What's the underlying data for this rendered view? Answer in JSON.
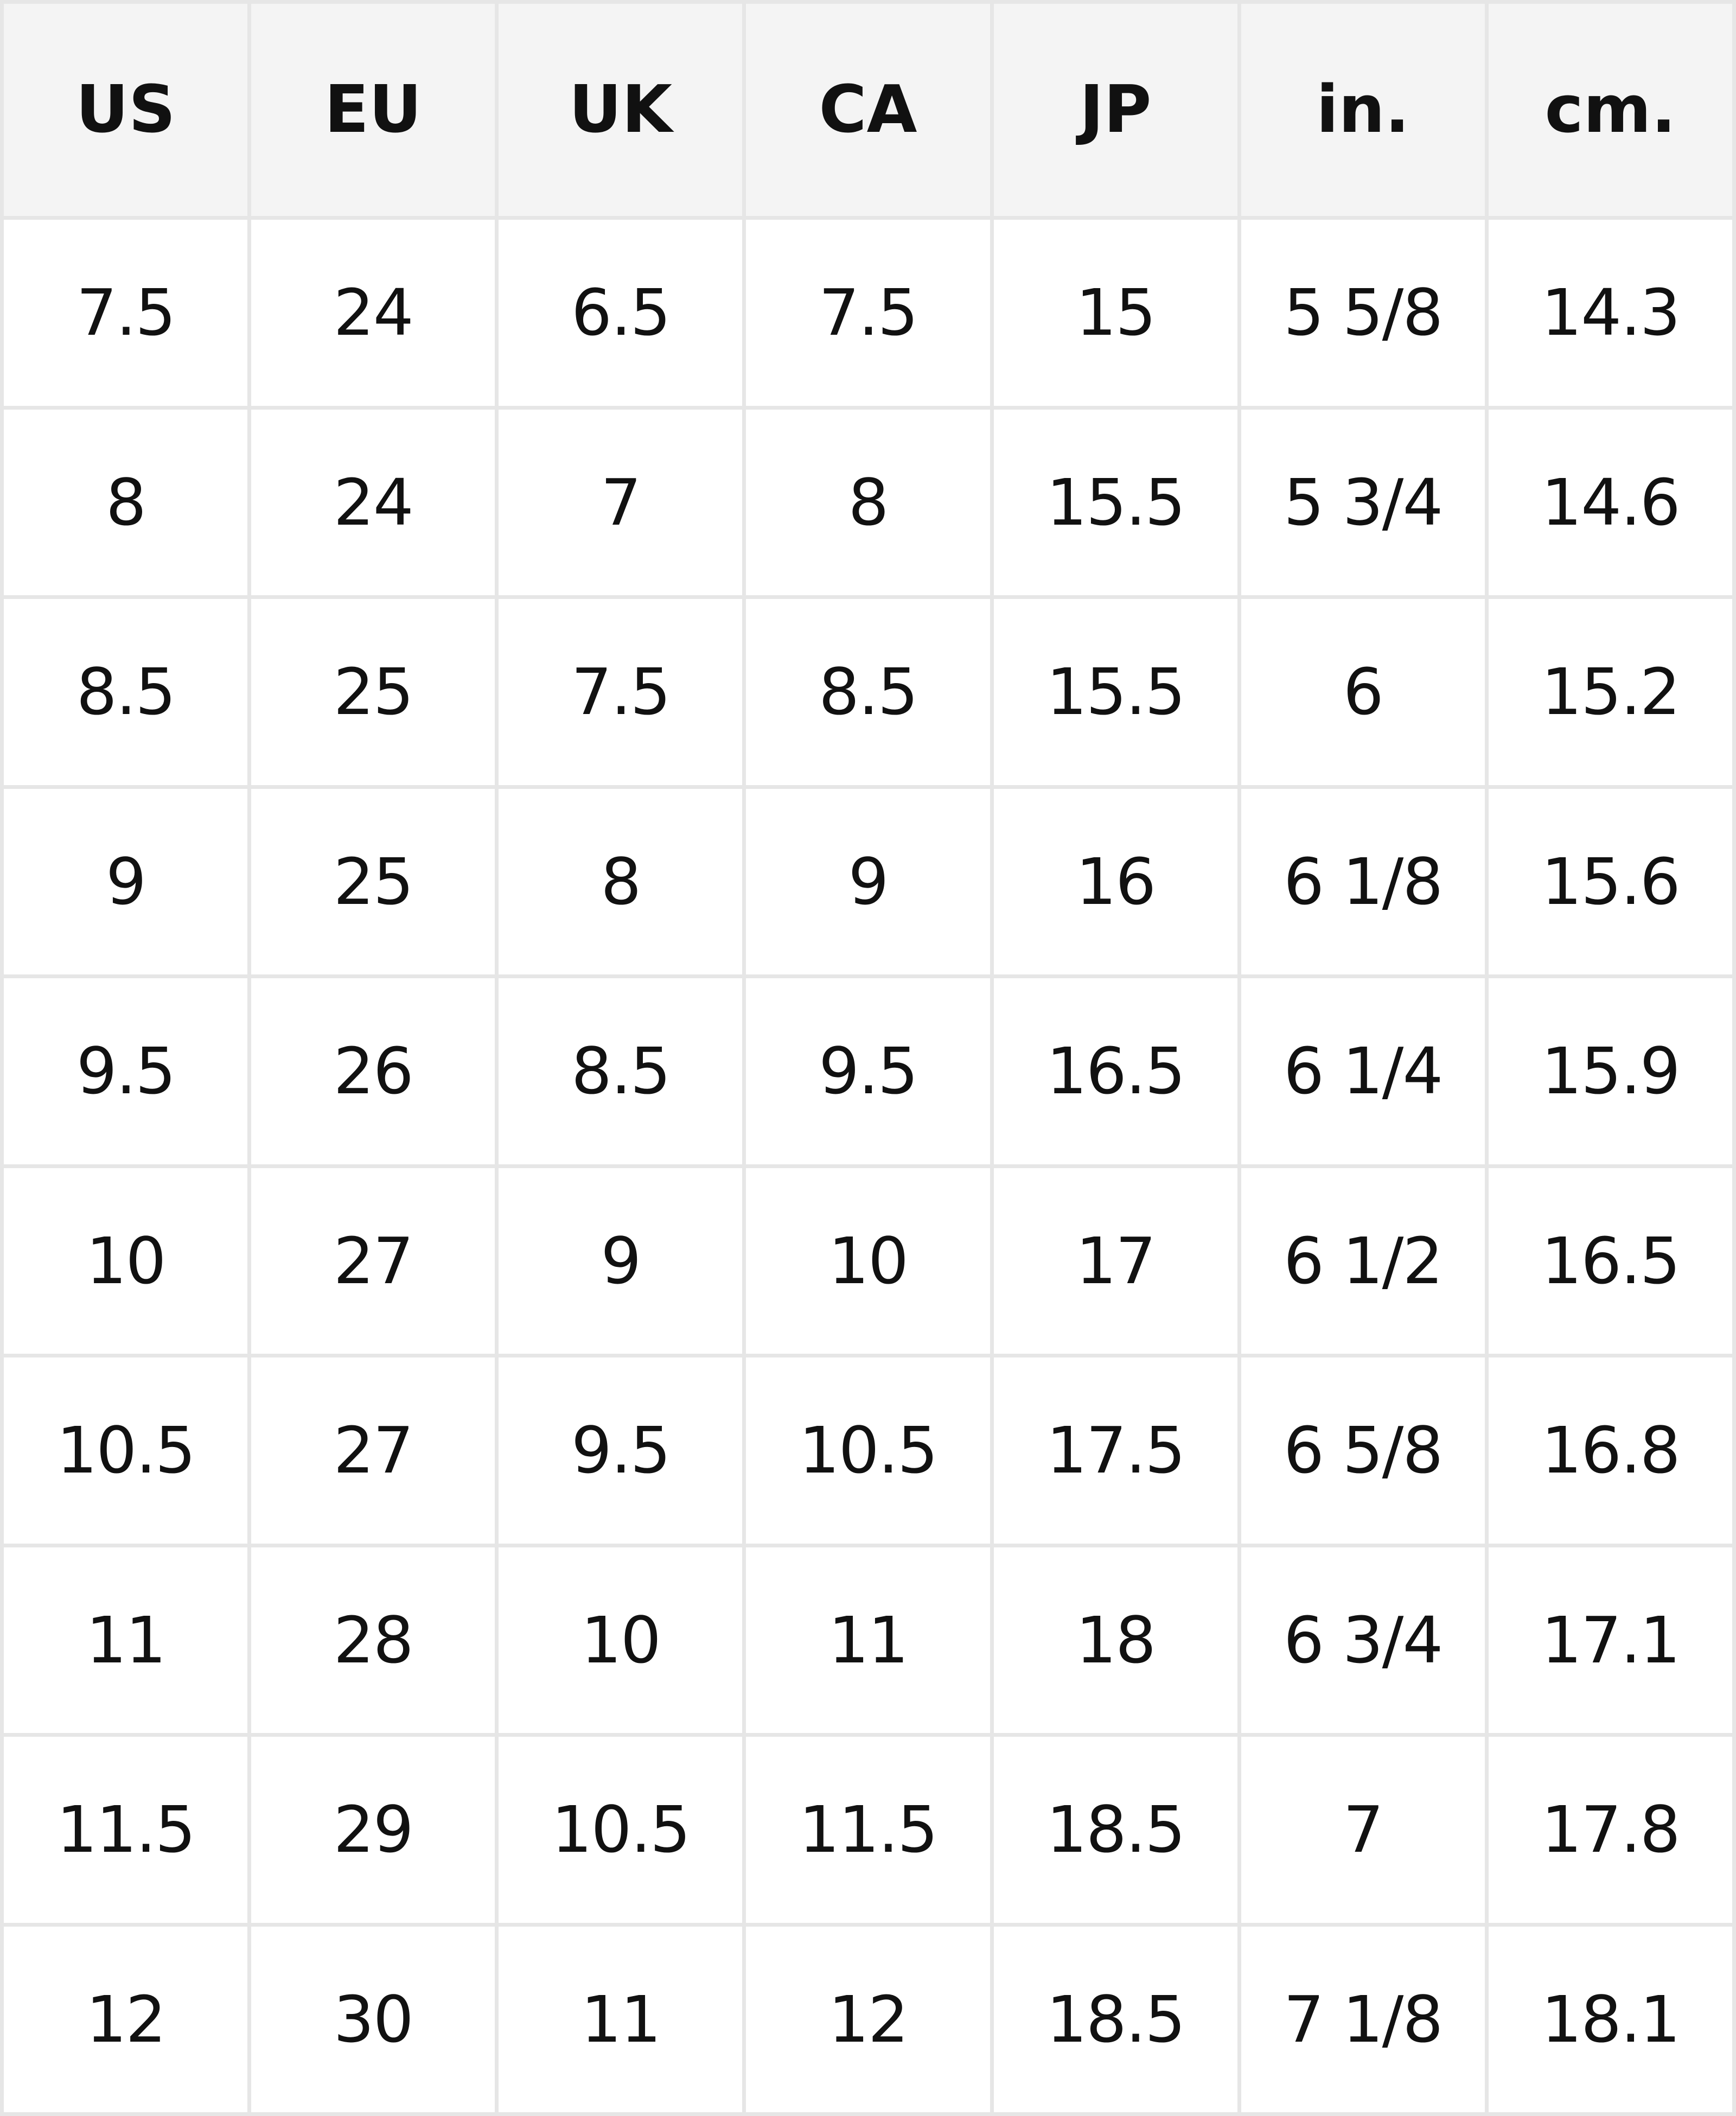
{
  "colors": {
    "header_bg": "#f4f4f4",
    "grid_line": "#e6e6e6",
    "cell_bg": "#ffffff",
    "text": "#111111"
  },
  "headers": [
    "US",
    "EU",
    "UK",
    "CA",
    "JP",
    "in.",
    "cm."
  ],
  "rows": [
    [
      "7.5",
      "24",
      "6.5",
      "7.5",
      "15",
      "5 5/8",
      "14.3"
    ],
    [
      "8",
      "24",
      "7",
      "8",
      "15.5",
      "5 3/4",
      "14.6"
    ],
    [
      "8.5",
      "25",
      "7.5",
      "8.5",
      "15.5",
      "6",
      "15.2"
    ],
    [
      "9",
      "25",
      "8",
      "9",
      "16",
      "6 1/8",
      "15.6"
    ],
    [
      "9.5",
      "26",
      "8.5",
      "9.5",
      "16.5",
      "6 1/4",
      "15.9"
    ],
    [
      "10",
      "27",
      "9",
      "10",
      "17",
      "6 1/2",
      "16.5"
    ],
    [
      "10.5",
      "27",
      "9.5",
      "10.5",
      "17.5",
      "6 5/8",
      "16.8"
    ],
    [
      "11",
      "28",
      "10",
      "11",
      "18",
      "6 3/4",
      "17.1"
    ],
    [
      "11.5",
      "29",
      "10.5",
      "11.5",
      "18.5",
      "7",
      "17.8"
    ],
    [
      "12",
      "30",
      "11",
      "12",
      "18.5",
      "7 1/8",
      "18.1"
    ]
  ]
}
